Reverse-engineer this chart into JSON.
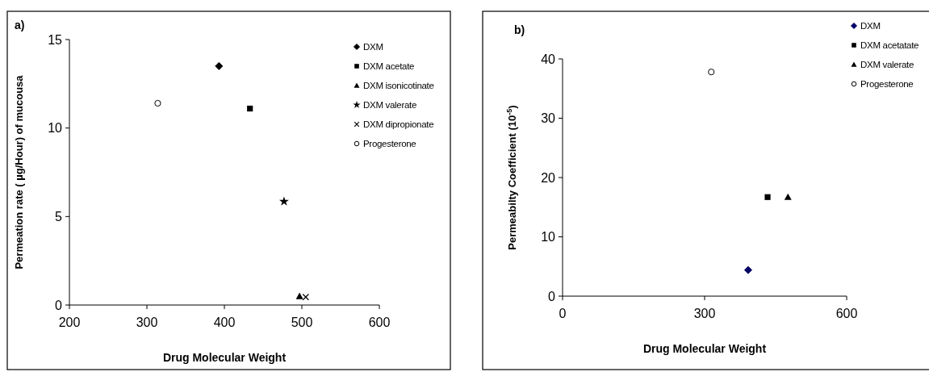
{
  "chart_data": [
    {
      "type": "scatter",
      "title": "a)",
      "xlabel": "Drug Molecular Weight",
      "ylabel": "Permeation rate ( µg/Hour) of mucousa",
      "xlim": [
        200,
        600
      ],
      "xticks": [
        200,
        300,
        400,
        500,
        600
      ],
      "ylim": [
        0,
        15
      ],
      "yticks": [
        0,
        5,
        10,
        15
      ],
      "grid": false,
      "legend": "top right",
      "series": [
        {
          "name": "DXM",
          "color": "#000000",
          "marker": "diamond",
          "x": [
            393
          ],
          "values": [
            13.5
          ]
        },
        {
          "name": "DXM acetate",
          "color": "#000000",
          "marker": "square",
          "x": [
            433
          ],
          "values": [
            11.1
          ]
        },
        {
          "name": "DXM isonicotinate",
          "color": "#000000",
          "marker": "triangle",
          "x": [
            497
          ],
          "values": [
            0.5
          ]
        },
        {
          "name": "DXM valerate",
          "color": "#000000",
          "marker": "star",
          "x": [
            477
          ],
          "values": [
            5.85
          ]
        },
        {
          "name": "DXM dipropionate",
          "color": "#000000",
          "marker": "cross",
          "x": [
            505
          ],
          "values": [
            0.45
          ]
        },
        {
          "name": "Progesterone",
          "color": "#000000",
          "marker": "circle",
          "x": [
            314
          ],
          "values": [
            11.4
          ]
        }
      ]
    },
    {
      "type": "scatter",
      "title": "b)",
      "xlabel": "Drug Molecular Weight",
      "ylabel": "Permeabilty Coefficient (10$^{-5}$)",
      "xlim": [
        0,
        600
      ],
      "xticks": [
        0,
        300,
        600
      ],
      "ylim": [
        0,
        40
      ],
      "yticks": [
        0,
        10,
        20,
        30,
        40
      ],
      "grid": false,
      "legend": "top right",
      "series": [
        {
          "name": "DXM",
          "color": "#000066",
          "marker": "diamond",
          "x": [
            392
          ],
          "values": [
            4.4
          ]
        },
        {
          "name": "DXM acetatate",
          "color": "#000000",
          "marker": "square",
          "x": [
            433
          ],
          "values": [
            16.7
          ]
        },
        {
          "name": "DXM valerate",
          "color": "#000000",
          "marker": "triangle",
          "x": [
            476
          ],
          "values": [
            16.7
          ]
        },
        {
          "name": "Progesterone",
          "color": "#000000",
          "marker": "circle",
          "x": [
            314
          ],
          "values": [
            37.8
          ]
        }
      ]
    }
  ]
}
